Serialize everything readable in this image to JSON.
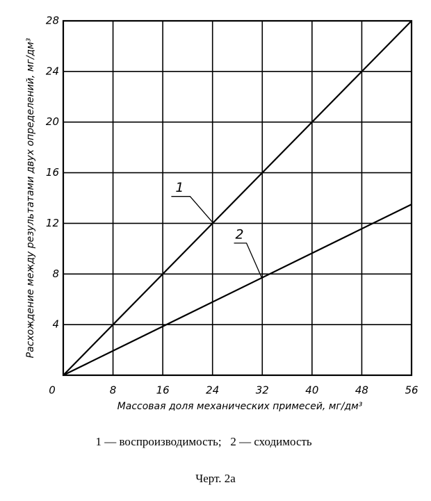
{
  "chart_data": {
    "type": "line",
    "x_label": "Массовая доля механических примесей, мг/дм³",
    "y_label": "Расхождение между результатами двух определений, мг/дм³",
    "x": [
      0,
      56
    ],
    "series": [
      {
        "name": "1",
        "color": "#000000",
        "values": [
          0,
          28
        ]
      },
      {
        "name": "2",
        "color": "#000000",
        "values": [
          0,
          13.5
        ]
      }
    ],
    "xlim": [
      0,
      56
    ],
    "xticks": [
      0,
      8,
      16,
      24,
      32,
      40,
      48,
      56
    ],
    "ylim": [
      0,
      28
    ],
    "yticks": [
      0,
      4,
      8,
      12,
      16,
      20,
      24,
      28
    ],
    "grid": true,
    "legend": [
      "1 — воспроизводимость;",
      "2 — сходимость"
    ],
    "caption": "Черт. 2а"
  }
}
